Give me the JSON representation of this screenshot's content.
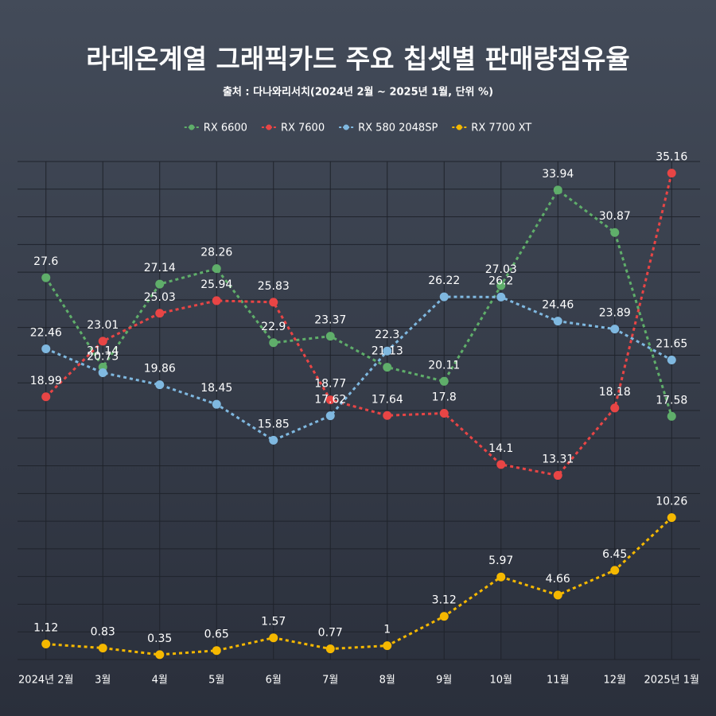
{
  "chart_data": {
    "type": "line",
    "title": "라데온계열 그래픽카드 주요 칩셋별 판매량점유율",
    "subtitle": "출처 : 다나와리서치(2024년 2월 ~ 2025년 1월, 단위 %)",
    "categories": [
      "2024년 2월",
      "3월",
      "4월",
      "5월",
      "6월",
      "7월",
      "8월",
      "9월",
      "10월",
      "11월",
      "12월",
      "2025년 1월"
    ],
    "series": [
      {
        "name": "RX 6600",
        "color": "#5fae6a",
        "values": [
          27.6,
          21.14,
          27.14,
          28.26,
          22.9,
          23.37,
          21.13,
          20.11,
          27.03,
          33.94,
          30.87,
          17.58
        ]
      },
      {
        "name": "RX 7600",
        "color": "#e84545",
        "values": [
          18.99,
          23.01,
          25.03,
          25.94,
          25.83,
          18.77,
          17.64,
          17.8,
          14.1,
          13.31,
          18.18,
          35.16
        ]
      },
      {
        "name": "RX 580 2048SP",
        "color": "#7fb8e0",
        "values": [
          22.46,
          20.73,
          19.86,
          18.45,
          15.85,
          17.62,
          22.3,
          26.22,
          26.2,
          24.46,
          23.89,
          21.65
        ]
      },
      {
        "name": "RX 7700 XT",
        "color": "#f5b800",
        "values": [
          1.12,
          0.83,
          0.35,
          0.65,
          1.57,
          0.77,
          1,
          3.12,
          5.97,
          4.66,
          6.45,
          10.26
        ]
      }
    ],
    "ylim": [
      0,
      36
    ],
    "yticks": [
      0,
      2,
      4,
      6,
      8,
      10,
      12,
      14,
      16,
      18,
      20,
      22,
      24,
      26,
      28,
      30,
      32,
      34,
      36
    ],
    "grid": true,
    "legend": "top"
  }
}
